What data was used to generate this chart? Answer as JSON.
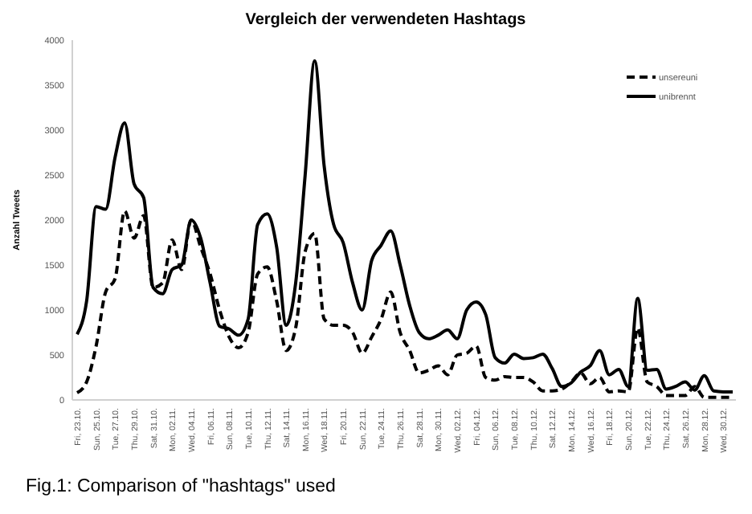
{
  "chart_data": {
    "type": "line",
    "title": "Vergleich der verwendeten Hashtags",
    "ylabel": "Anzahl Tweets",
    "annotations": [
      "Fig.1: Comparison of \"hashtags\" used"
    ],
    "categories": [
      "Fri, 23.10.",
      null,
      "Sun, 25.10.",
      null,
      "Tue, 27.10.",
      null,
      "Thu, 29.10.",
      null,
      "Sat, 31.10.",
      null,
      "Mon, 02.11.",
      null,
      "Wed, 04.11.",
      null,
      "Fri, 06.11.",
      null,
      "Sun, 08.11.",
      null,
      "Tue, 10.11.",
      null,
      "Thu, 12.11.",
      null,
      "Sat, 14.11.",
      null,
      "Mon, 16.11.",
      null,
      "Wed, 18.11.",
      null,
      "Fri, 20.11.",
      null,
      "Sun, 22.11.",
      null,
      "Tue, 24.11.",
      null,
      "Thu, 26.11.",
      null,
      "Sat, 28.11.",
      null,
      "Mon, 30.11.",
      null,
      "Wed, 02.12.",
      null,
      "Fri, 04.12.",
      null,
      "Sun, 06.12.",
      null,
      "Tue, 08.12.",
      null,
      "Thu, 10.12.",
      null,
      "Sat, 12.12.",
      null,
      "Mon, 14.12.",
      null,
      "Wed, 16.12.",
      null,
      "Fri, 18.12.",
      null,
      "Sun, 20.12.",
      null,
      "Tue, 22.12.",
      null,
      "Thu, 24.12.",
      null,
      "Sat, 26.12.",
      null,
      "Mon, 28.12.",
      null,
      "Wed, 30.12.",
      null
    ],
    "series": [
      {
        "name": "unsereuni",
        "color": "#000000",
        "line_style": "dashed",
        "values": [
          80,
          200,
          600,
          1200,
          1350,
          2100,
          1800,
          2050,
          1250,
          1300,
          1780,
          1450,
          2000,
          1700,
          1400,
          1000,
          700,
          580,
          750,
          1400,
          1480,
          1100,
          550,
          800,
          1650,
          1850,
          900,
          830,
          830,
          750,
          520,
          700,
          900,
          1200,
          750,
          550,
          300,
          330,
          380,
          280,
          500,
          520,
          600,
          250,
          220,
          260,
          250,
          250,
          200,
          100,
          100,
          120,
          200,
          300,
          180,
          250,
          90,
          100,
          90,
          800,
          200,
          150,
          50,
          50,
          50,
          150,
          30,
          30,
          30,
          30
        ]
      },
      {
        "name": "unibrennt",
        "color": "#000000",
        "line_style": "solid",
        "values": [
          730,
          1100,
          2150,
          2120,
          2700,
          3080,
          2400,
          2250,
          1250,
          1180,
          1450,
          1500,
          2000,
          1800,
          1300,
          820,
          790,
          720,
          900,
          1950,
          2070,
          1700,
          830,
          1300,
          2500,
          3770,
          2600,
          1950,
          1750,
          1300,
          1000,
          1550,
          1720,
          1880,
          1500,
          1050,
          750,
          680,
          720,
          780,
          680,
          1000,
          1090,
          950,
          470,
          410,
          510,
          460,
          470,
          510,
          350,
          150,
          190,
          310,
          380,
          550,
          280,
          340,
          150,
          1130,
          330,
          340,
          120,
          150,
          200,
          110,
          270,
          100,
          90,
          90
        ]
      }
    ],
    "ylim": [
      0,
      4000
    ],
    "yticks": [
      0,
      500,
      1000,
      1500,
      2000,
      2500,
      3000,
      3500,
      4000
    ],
    "grid": false,
    "legend": "top right"
  }
}
